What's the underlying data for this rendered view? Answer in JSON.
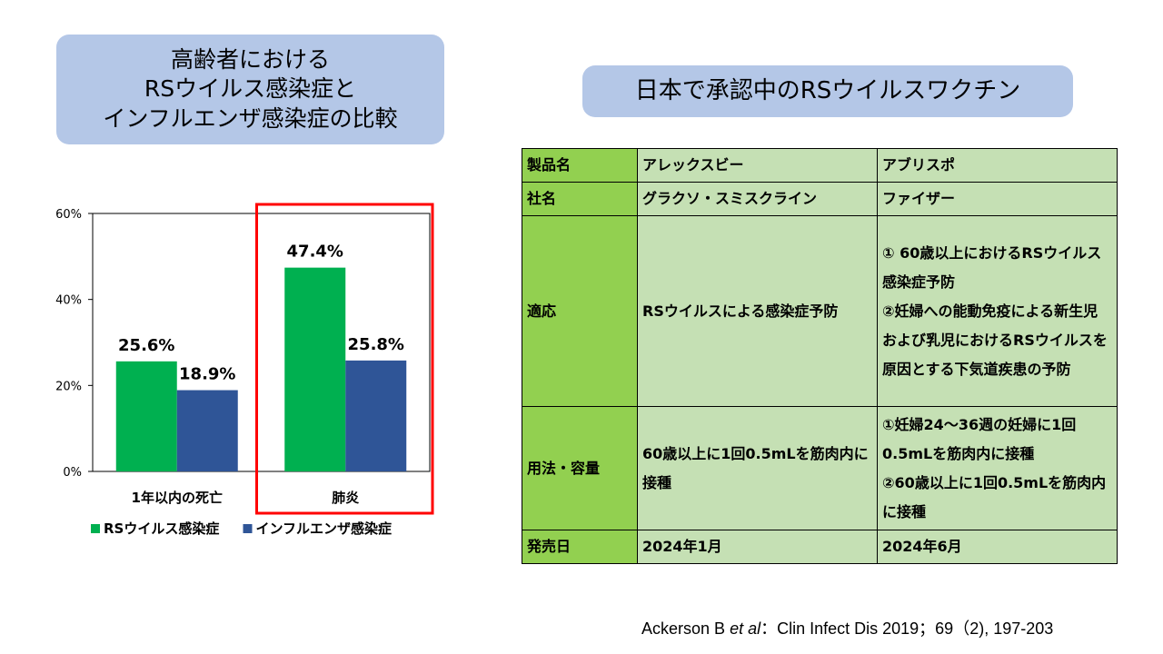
{
  "left_title": {
    "lines": [
      "高齢者における",
      "RSウイルス感染症と",
      "インフルエンザ感染症の比較"
    ]
  },
  "right_title": "日本で承認中のRSウイルスワクチン",
  "chart_data": {
    "type": "bar",
    "categories": [
      "1年以内の死亡",
      "肺炎"
    ],
    "series": [
      {
        "name": "RSウイルス感染症",
        "color": "#00b050",
        "values": [
          25.6,
          47.4
        ]
      },
      {
        "name": "インフルエンザ感染症",
        "color": "#2f5597",
        "values": [
          18.9,
          25.8
        ]
      }
    ],
    "data_labels": [
      [
        "25.6%",
        "47.4%"
      ],
      [
        "18.9%",
        "25.8%"
      ]
    ],
    "y_ticks": [
      0,
      20,
      40,
      60
    ],
    "y_tick_labels": [
      "0%",
      "20%",
      "40%",
      "60%"
    ],
    "ylim": [
      0,
      60
    ],
    "legend_position": "bottom",
    "highlight_category": "肺炎",
    "highlight_color": "#ff0000"
  },
  "table": {
    "rows": [
      {
        "header": "製品名",
        "cells": [
          [
            "アレックスビー"
          ],
          [
            "アブリスポ"
          ]
        ]
      },
      {
        "header": "社名",
        "cells": [
          [
            "グラクソ・スミスクライン"
          ],
          [
            "ファイザー"
          ]
        ]
      },
      {
        "header": "適応",
        "cells": [
          [
            "RSウイルスによる感染症予防"
          ],
          [
            "① 60歳以上におけるRSウイルス感染症予防",
            "②妊婦への能動免疫による新生児および乳児におけるRSウイルスを原因とする下気道疾患の予防"
          ]
        ]
      },
      {
        "header": "用法・容量",
        "cells": [
          [
            "60歳以上に1回0.5mLを筋肉内に接種"
          ],
          [
            "①妊婦24～36週の妊婦に1回0.5mLを筋肉内に接種",
            "②60歳以上に1回0.5mLを筋肉内に接種"
          ]
        ]
      },
      {
        "header": "発売日",
        "cells": [
          [
            "2024年1月"
          ],
          [
            "2024年6月"
          ]
        ]
      }
    ]
  },
  "citation": {
    "author": "Ackerson B",
    "etal": "et al",
    "rest": "：Clin Infect Dis 2019；69（2), 197-203"
  }
}
